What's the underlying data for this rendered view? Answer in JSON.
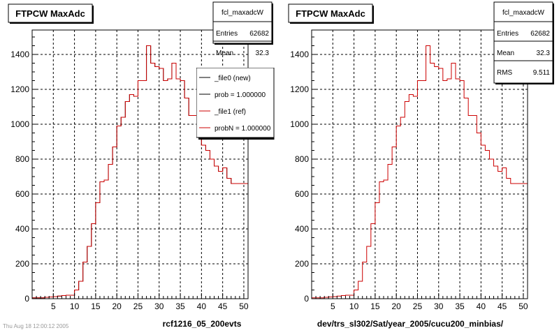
{
  "footer_text": "Thu Aug 18 12:00:12 2005",
  "colors": {
    "hist_new": "#000000",
    "hist_ref": "#cc0000",
    "frame": "#000000",
    "background": "#ffffff"
  },
  "chart_data": [
    {
      "type": "bar",
      "title": "FTPCW MaxAdc",
      "xlabel": "rcf1216_05_200evts",
      "ylabel": "",
      "xlim": [
        0,
        51
      ],
      "ylim": [
        0,
        1540
      ],
      "xticks": [
        5,
        10,
        15,
        20,
        25,
        30,
        35,
        40,
        45,
        50
      ],
      "yticks": [
        0,
        200,
        400,
        600,
        800,
        1000,
        1200,
        1400
      ],
      "grid": true,
      "bin_width": 1,
      "x_bin_low_edges": [
        0,
        1,
        2,
        3,
        4,
        5,
        6,
        7,
        8,
        9,
        10,
        11,
        12,
        13,
        14,
        15,
        16,
        17,
        18,
        19,
        20,
        21,
        22,
        23,
        24,
        25,
        26,
        27,
        28,
        29,
        30,
        31,
        32,
        33,
        34,
        35,
        36,
        37,
        38,
        39,
        40,
        41,
        42,
        43,
        44,
        45,
        46,
        47,
        48,
        49,
        50
      ],
      "series": [
        {
          "name": "_file0 (new)",
          "values": [
            5,
            5,
            5,
            8,
            10,
            12,
            15,
            18,
            20,
            20,
            50,
            100,
            210,
            300,
            430,
            550,
            670,
            680,
            770,
            870,
            990,
            1040,
            1130,
            1170,
            1160,
            1250,
            1250,
            1450,
            1350,
            1330,
            1320,
            1250,
            1260,
            1350,
            1260,
            1250,
            1150,
            1050,
            1050,
            950,
            880,
            850,
            800,
            760,
            730,
            750,
            690,
            660,
            660,
            660,
            660
          ]
        },
        {
          "name": "_file1 (ref)",
          "values": [
            5,
            5,
            5,
            8,
            10,
            12,
            15,
            18,
            20,
            20,
            50,
            100,
            210,
            300,
            430,
            550,
            670,
            680,
            770,
            870,
            990,
            1040,
            1130,
            1170,
            1160,
            1250,
            1250,
            1450,
            1350,
            1330,
            1320,
            1250,
            1260,
            1350,
            1260,
            1250,
            1150,
            1050,
            1050,
            950,
            880,
            850,
            800,
            760,
            730,
            750,
            690,
            660,
            660,
            660,
            660
          ]
        }
      ],
      "stats": {
        "name": "fcl_maxadcW",
        "entries": "62682",
        "mean": "32.3"
      },
      "legend": {
        "placement": "top-right",
        "entries": [
          {
            "label": "_file0 (new)",
            "color": "#000000"
          },
          {
            "label": "prob = 1.000000",
            "color": "#000000"
          },
          {
            "label": "_file1 (ref)",
            "color": "#cc0000"
          },
          {
            "label": "probN = 1.000000",
            "color": "#cc0000"
          }
        ]
      }
    },
    {
      "type": "bar",
      "title": "FTPCW MaxAdc",
      "xlabel": "dev/trs_sl302/Sat/year_2005/cucu200_minbias/",
      "ylabel": "",
      "xlim": [
        0,
        51
      ],
      "ylim": [
        0,
        1540
      ],
      "xticks": [
        5,
        10,
        15,
        20,
        25,
        30,
        35,
        40,
        45,
        50
      ],
      "yticks": [
        0,
        200,
        400,
        600,
        800,
        1000,
        1200,
        1400
      ],
      "grid": true,
      "bin_width": 1,
      "x_bin_low_edges": [
        0,
        1,
        2,
        3,
        4,
        5,
        6,
        7,
        8,
        9,
        10,
        11,
        12,
        13,
        14,
        15,
        16,
        17,
        18,
        19,
        20,
        21,
        22,
        23,
        24,
        25,
        26,
        27,
        28,
        29,
        30,
        31,
        32,
        33,
        34,
        35,
        36,
        37,
        38,
        39,
        40,
        41,
        42,
        43,
        44,
        45,
        46,
        47,
        48,
        49,
        50
      ],
      "series": [
        {
          "name": "",
          "values": [
            5,
            5,
            5,
            8,
            10,
            12,
            15,
            18,
            20,
            20,
            50,
            100,
            210,
            300,
            430,
            550,
            670,
            680,
            770,
            870,
            990,
            1040,
            1130,
            1170,
            1160,
            1250,
            1250,
            1450,
            1350,
            1330,
            1320,
            1250,
            1260,
            1350,
            1260,
            1250,
            1150,
            1050,
            1050,
            950,
            880,
            850,
            800,
            760,
            730,
            750,
            690,
            660,
            660,
            660,
            660
          ]
        }
      ],
      "stats": {
        "name": "fcl_maxadcW",
        "entries": "62682",
        "mean": "32.3",
        "rms": "9.511"
      }
    }
  ]
}
